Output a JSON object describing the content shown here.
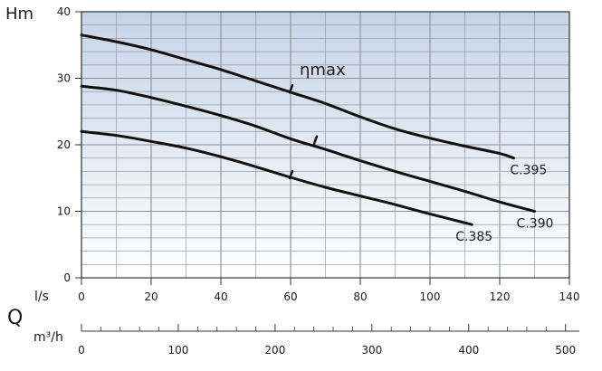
{
  "chart_data": {
    "type": "line",
    "ylabel": "Hm",
    "xlabel_primary": "Q",
    "x_unit_ls": "l/s",
    "x_unit_m3h": "m³/h",
    "xlim": [
      0,
      140
    ],
    "ylim": [
      0,
      40
    ],
    "x_ticks": [
      "0",
      "20",
      "40",
      "60",
      "80",
      "100",
      "120",
      "140"
    ],
    "y_ticks": [
      "0",
      "10",
      "20",
      "30",
      "40"
    ],
    "x2_ticks": [
      "0",
      "100",
      "200",
      "300",
      "400",
      "500"
    ],
    "x2_tick_values": [
      0,
      100,
      200,
      300,
      400,
      500
    ],
    "x2_range": [
      0,
      504
    ],
    "grid": true,
    "series": [
      {
        "name": "C.395",
        "x": [
          0,
          10,
          20,
          30,
          40,
          50,
          60,
          70,
          80,
          90,
          100,
          110,
          120,
          124
        ],
        "y": [
          36.5,
          35.5,
          34.3,
          32.8,
          31.3,
          29.6,
          27.9,
          26.2,
          24.2,
          22.4,
          21.0,
          19.8,
          18.7,
          18.0
        ]
      },
      {
        "name": "C.390",
        "x": [
          0,
          10,
          20,
          30,
          40,
          50,
          60,
          70,
          80,
          90,
          100,
          110,
          120,
          130
        ],
        "y": [
          28.8,
          28.2,
          27.1,
          25.8,
          24.4,
          22.8,
          20.9,
          19.3,
          17.6,
          16.0,
          14.5,
          13.0,
          11.4,
          10.0
        ]
      },
      {
        "name": "C.385",
        "x": [
          0,
          10,
          20,
          30,
          40,
          50,
          60,
          70,
          80,
          90,
          100,
          112
        ],
        "y": [
          22.0,
          21.4,
          20.5,
          19.5,
          18.2,
          16.7,
          15.1,
          13.6,
          12.3,
          11.0,
          9.6,
          8.0
        ]
      }
    ],
    "eta_label": "ηmax",
    "efficiency_marks": [
      {
        "series": "C.395",
        "x": 60,
        "y": 28.0
      },
      {
        "series": "C.390",
        "x": 67,
        "y": 20.3
      },
      {
        "series": "C.385",
        "x": 60,
        "y": 15.1
      }
    ],
    "colors": {
      "curve": "#111111",
      "grid": "#8a8f98",
      "gradient_top": "#c5d4e6",
      "gradient_bottom": "#ffffff"
    }
  }
}
